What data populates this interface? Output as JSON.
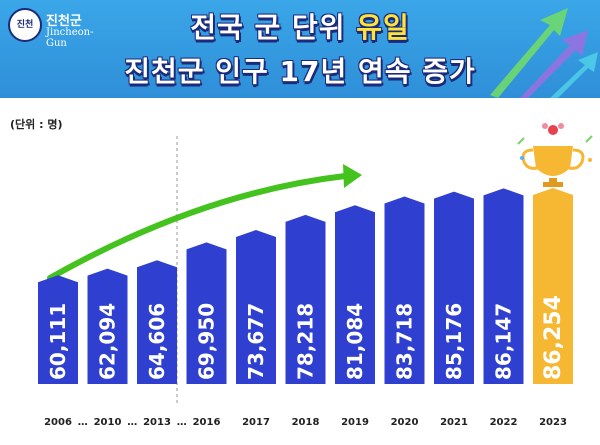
{
  "header": {
    "title_line1_prefix": "전국 군 단위 ",
    "title_line1_highlight": "유일",
    "title_line2": "진천군 인구 17년 연속 증가",
    "logo_korean": "진천군",
    "logo_english": "Jincheon-Gun"
  },
  "unit_label": "(단위 : 명)",
  "colors": {
    "header_bg": "#2f8fd8",
    "bar": "#2f3fd0",
    "highlight_bar": "#f6b733",
    "arrow": "#44c21e",
    "title_highlight": "#ffe23a"
  },
  "icons": [
    "trophy-icon",
    "growth-arrow-icon"
  ],
  "chart_data": {
    "type": "bar",
    "categories": [
      "2006",
      "2010",
      "2013",
      "2016",
      "2017",
      "2018",
      "2019",
      "2020",
      "2021",
      "2022",
      "2023"
    ],
    "values": [
      60111,
      62094,
      64606,
      69950,
      73677,
      78218,
      81084,
      83718,
      85176,
      86147,
      86254
    ],
    "value_labels": [
      "60,111",
      "62,094",
      "64,606",
      "69,950",
      "73,677",
      "78,218",
      "81,084",
      "83,718",
      "85,176",
      "86,147",
      "86,254"
    ],
    "separators": [
      "…",
      "…",
      "…"
    ],
    "highlight_index": 10,
    "grid": false,
    "legend": "none"
  }
}
